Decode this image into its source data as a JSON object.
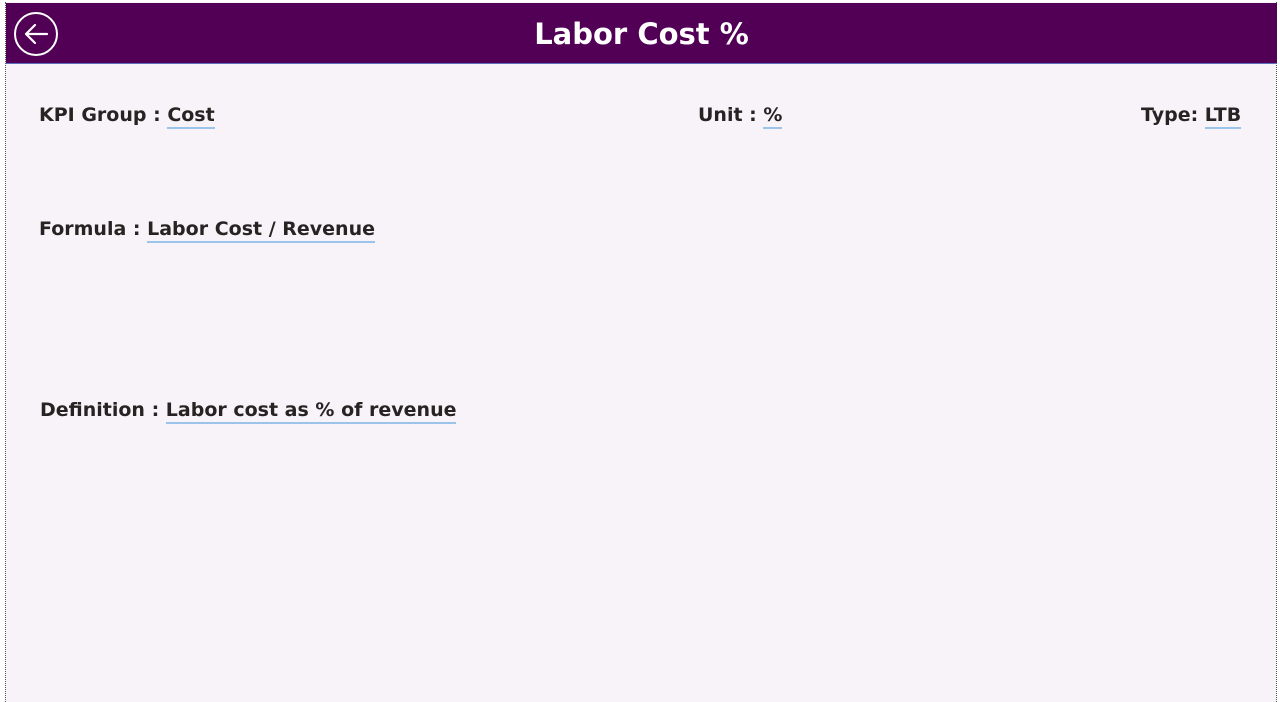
{
  "header": {
    "title": "Labor Cost %",
    "back_icon": "back-arrow-circle-icon",
    "color": "#510056"
  },
  "fields": {
    "kpi_group": {
      "label": "KPI Group : ",
      "value": "Cost"
    },
    "unit": {
      "label": "Unit : ",
      "value": "%"
    },
    "type": {
      "label": "Type: ",
      "value": "LTB"
    },
    "formula": {
      "label": "Formula : ",
      "value": "Labor Cost / Revenue"
    },
    "definition": {
      "label": "Definition : ",
      "value": "Labor cost as % of revenue"
    }
  }
}
